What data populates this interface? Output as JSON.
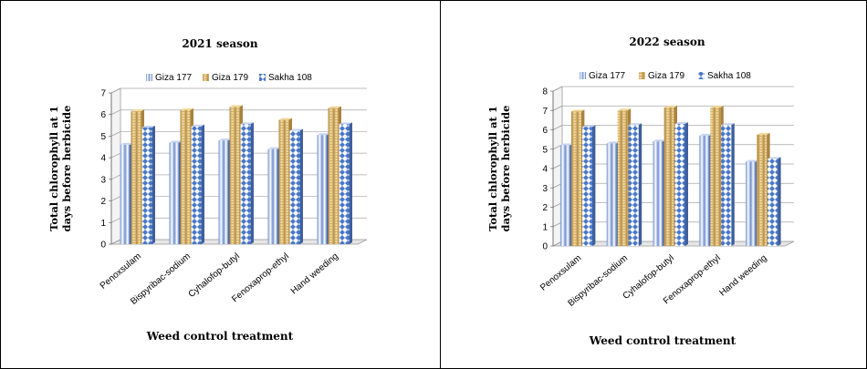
{
  "chart_data": [
    {
      "type": "bar",
      "title": "2021 season",
      "xlabel": "Weed control treatment",
      "ylabel_lines": [
        "Total chlorophyll  at 1",
        "days before  herbicide"
      ],
      "categories": [
        "Penoxsulam",
        "Bispyribac-sodium",
        "Cyhalofop-butyl",
        "Fenoxaprop-ethyl",
        "Hand weeding"
      ],
      "ylim": [
        0,
        7
      ],
      "yticks": [
        0,
        1,
        2,
        3,
        4,
        5,
        6,
        7
      ],
      "grid": true,
      "legend_position": "top",
      "series": [
        {
          "name": "Giza 177",
          "color": "#5b7fc4",
          "values": [
            4.6,
            4.7,
            4.8,
            4.4,
            5.05
          ]
        },
        {
          "name": "Giza 179",
          "color": "#e0c07a",
          "values": [
            6.15,
            6.2,
            6.35,
            5.75,
            6.3
          ]
        },
        {
          "name": "Sakha 108",
          "color": "#4a78c8",
          "values": [
            5.4,
            5.45,
            5.55,
            5.25,
            5.55
          ]
        }
      ]
    },
    {
      "type": "bar",
      "title": "2022 season",
      "xlabel": "Weed control treatment",
      "ylabel_lines": [
        "Total chlorophyll  at 1",
        "days before  herbicide"
      ],
      "categories": [
        "Penoxsulam",
        "Bispyribac-sodium",
        "Cyhalofop-butyl",
        "Fenoxaprop-ethyl",
        "Hand weeding"
      ],
      "ylim": [
        0,
        8
      ],
      "yticks": [
        0,
        1,
        2,
        3,
        4,
        5,
        6,
        7,
        8
      ],
      "grid": true,
      "legend_position": "top",
      "series": [
        {
          "name": "Giza 177",
          "color": "#5b7fc4",
          "values": [
            5.2,
            5.3,
            5.4,
            5.7,
            4.35
          ]
        },
        {
          "name": "Giza 179",
          "color": "#e0c07a",
          "values": [
            6.95,
            7.0,
            7.15,
            7.15,
            5.75
          ]
        },
        {
          "name": "Sakha 108",
          "color": "#4a78c8",
          "values": [
            6.15,
            6.25,
            6.3,
            6.25,
            4.5
          ]
        }
      ]
    }
  ]
}
